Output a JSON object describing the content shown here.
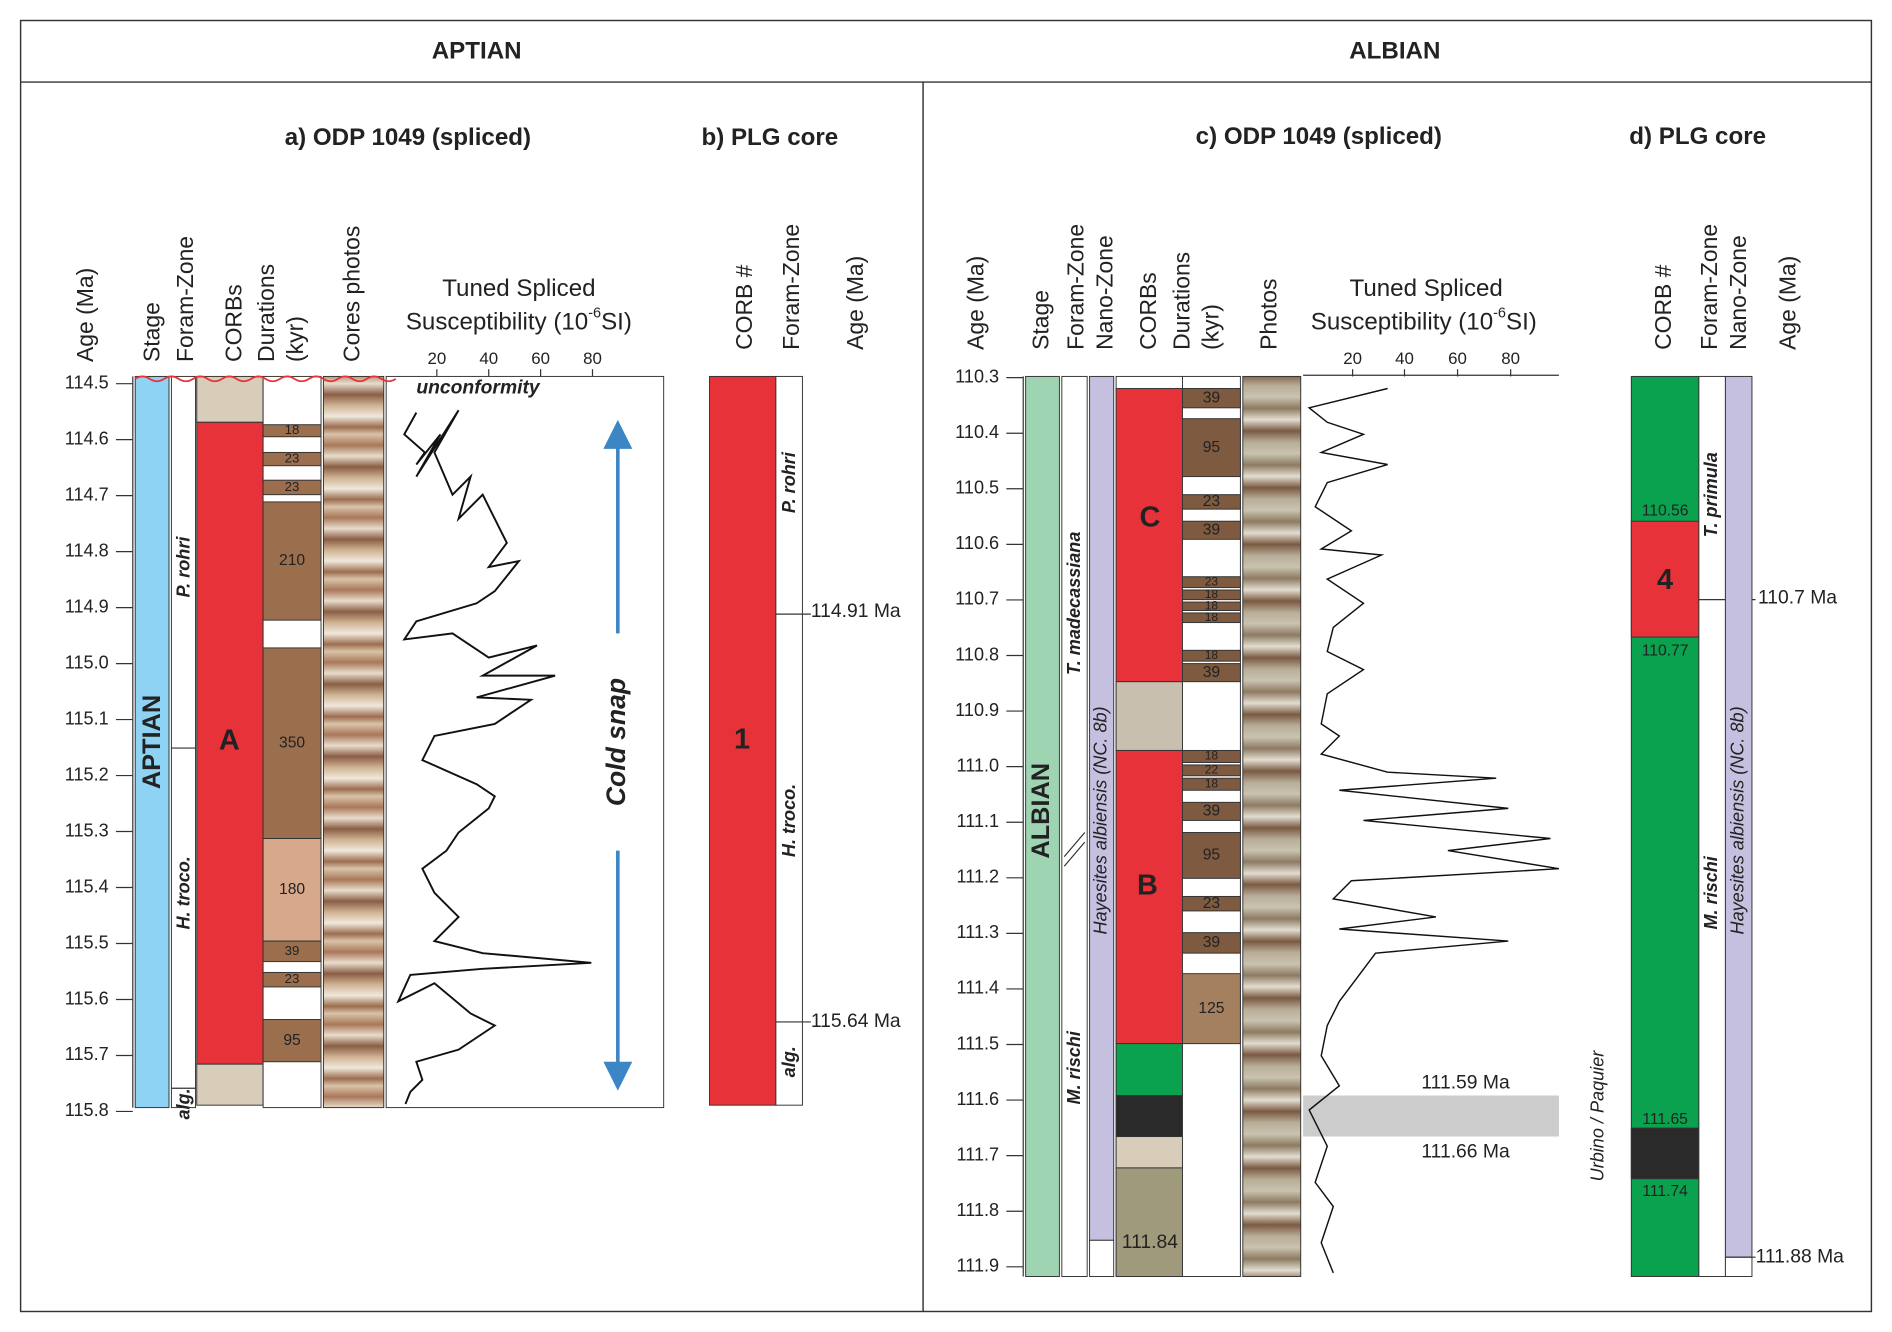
{
  "header": {
    "aptian": "APTIAN",
    "albian": "ALBIAN"
  },
  "panel_a": {
    "title": "a) ODP 1049 (spliced)",
    "columns": [
      "Age (Ma)",
      "Stage",
      "Foram-Zone",
      "CORBs",
      "Durations",
      "(kyr)",
      "Cores photos"
    ],
    "plot_title": [
      "Tuned Spliced",
      "Susceptibility (10",
      "-6",
      "SI)"
    ],
    "plot_ticks": [
      "20",
      "40",
      "60",
      "80"
    ],
    "age_ticks": [
      "114.5",
      "114.6",
      "114.7",
      "114.8",
      "114.9",
      "115.0",
      "115.1",
      "115.2",
      "115.3",
      "115.4",
      "115.5",
      "115.6",
      "115.7",
      "115.8"
    ],
    "stage": "APTIAN",
    "zones": [
      "P. rohri",
      "H. troco.",
      "alg."
    ],
    "corb": "A",
    "durations": [
      "18",
      "23",
      "23",
      "210",
      "350",
      "180",
      "39",
      "23",
      "95"
    ],
    "annotation": "unconformity",
    "arrow_label": "Cold snap"
  },
  "panel_b": {
    "title": "b) PLG core",
    "columns": [
      "CORB #",
      "Foram-Zone",
      "Age (Ma)"
    ],
    "corb": "1",
    "zones": [
      "P. rohri",
      "H. troco.",
      "alg."
    ],
    "ages": [
      "114.91 Ma",
      "115.64 Ma"
    ]
  },
  "panel_c": {
    "title": "c) ODP 1049 (spliced)",
    "columns": [
      "Age (Ma)",
      "Stage",
      "Foram-Zone",
      "Nano-Zone",
      "CORBs",
      "Durations",
      "(kyr)",
      "Photos"
    ],
    "plot_title": [
      "Tuned Spliced",
      "Susceptibility (10",
      "-6",
      "SI)"
    ],
    "plot_ticks": [
      "20",
      "40",
      "60",
      "80"
    ],
    "age_ticks": [
      "110.3",
      "110.4",
      "110.5",
      "110.6",
      "110.7",
      "110.8",
      "110.9",
      "111.0",
      "111.1",
      "111.2",
      "111.3",
      "111.4",
      "111.5",
      "111.6",
      "111.7",
      "111.8",
      "111.9"
    ],
    "stage": "ALBIAN",
    "foram_zones": [
      "T. madecassiana",
      "M. rischi"
    ],
    "nanno_zone": "Hayesites albiensis (NC. 8b)",
    "corbs": [
      "C",
      "B"
    ],
    "corb_age": "111.84",
    "durations": [
      "39",
      "95",
      "23",
      "39",
      "23",
      "18",
      "18",
      "18",
      "18",
      "39",
      "18",
      "22",
      "18",
      "39",
      "95",
      "23",
      "39",
      "125"
    ],
    "band_ages": [
      "111.59 Ma",
      "111.66 Ma"
    ]
  },
  "panel_d": {
    "title": "d) PLG core",
    "columns": [
      "CORB #",
      "Foram-Zone",
      "Nano-Zone",
      "Age (Ma)"
    ],
    "corb": "4",
    "corb_ages": [
      "110.56",
      "110.77",
      "111.65",
      "111.74"
    ],
    "foram_zones": [
      "T. primula",
      "M. rischi"
    ],
    "nanno_zone": "Hayesites albiensis (NC. 8b)",
    "ages": [
      "110.7 Ma",
      "111.88 Ma"
    ],
    "section": "Urbino / Paquier"
  }
}
